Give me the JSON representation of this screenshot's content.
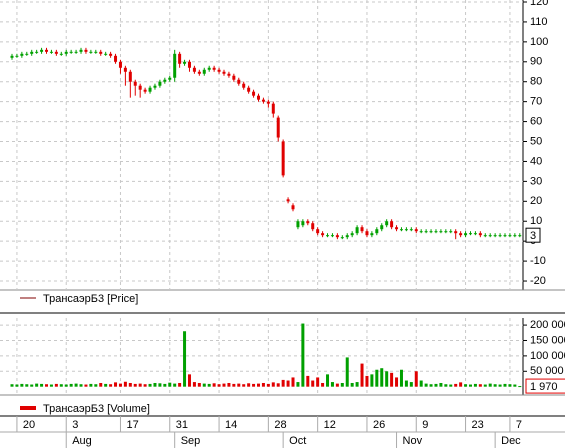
{
  "chart_data": [
    {
      "type": "candlestick",
      "up_color": "#00a000",
      "down_color": "#e00000",
      "grid": true,
      "ylim": [
        -24.5,
        121
      ],
      "yticks": [
        120,
        110,
        100,
        90,
        80,
        70,
        60,
        50,
        40,
        30,
        20,
        10,
        0,
        -10,
        -20
      ],
      "series": [
        {
          "name": "ТрансаэрБ3 [Price]",
          "color": "#800000",
          "open": [
            92,
            93,
            93,
            94,
            94,
            95,
            95,
            96,
            95,
            95,
            94,
            94,
            95,
            95,
            95,
            96,
            95,
            95,
            95,
            94,
            94,
            93,
            90,
            87,
            85,
            80,
            78,
            76,
            75,
            77,
            78,
            80,
            81,
            82,
            94,
            89,
            90,
            87,
            85,
            84,
            86,
            87,
            86,
            85,
            84,
            83,
            81,
            79,
            77,
            75,
            73,
            71,
            70,
            69,
            62,
            50,
            21,
            18,
            7,
            8,
            10,
            9,
            6,
            4,
            3,
            3,
            3,
            2,
            2,
            3,
            4,
            7,
            5,
            3,
            4,
            6,
            8,
            10,
            7,
            6,
            6,
            6,
            6,
            5,
            5,
            5,
            5,
            5,
            5,
            5,
            5,
            4,
            3,
            4,
            4,
            4,
            3,
            3,
            3,
            3,
            3,
            3,
            3,
            3
          ],
          "high": [
            94,
            94,
            95,
            95,
            96,
            96,
            97,
            97,
            96,
            96,
            95,
            96,
            96,
            96,
            97,
            97,
            96,
            96,
            96,
            95,
            95,
            94,
            91,
            88,
            86,
            81,
            79,
            77,
            78,
            79,
            81,
            82,
            83,
            96,
            95,
            91,
            91,
            88,
            86,
            87,
            88,
            88,
            87,
            86,
            85,
            84,
            82,
            80,
            78,
            76,
            74,
            72,
            71,
            70,
            63,
            51,
            22,
            19,
            11,
            11,
            11,
            10,
            7,
            5,
            4,
            4,
            4,
            3,
            4,
            5,
            8,
            8,
            6,
            5,
            7,
            9,
            11,
            11,
            8,
            7,
            7,
            7,
            7,
            6,
            6,
            6,
            6,
            6,
            6,
            6,
            6,
            5,
            5,
            5,
            5,
            5,
            4,
            4,
            4,
            4,
            4,
            4,
            4,
            4
          ],
          "low": [
            91,
            92,
            92,
            93,
            93,
            94,
            94,
            94,
            94,
            93,
            93,
            93,
            94,
            94,
            94,
            94,
            94,
            94,
            93,
            93,
            92,
            89,
            84,
            78,
            72,
            73,
            72,
            74,
            74,
            76,
            77,
            79,
            80,
            80,
            87,
            88,
            85,
            84,
            83,
            83,
            85,
            85,
            84,
            83,
            82,
            80,
            78,
            76,
            74,
            72,
            70,
            69,
            67,
            62,
            50,
            32,
            19,
            15,
            6,
            7,
            8,
            5,
            3,
            2,
            2,
            2,
            1,
            1,
            1,
            2,
            3,
            4,
            2,
            2,
            3,
            5,
            7,
            6,
            5,
            5,
            5,
            5,
            4,
            4,
            4,
            4,
            4,
            4,
            4,
            4,
            1,
            2,
            2,
            3,
            3,
            2,
            2,
            2,
            2,
            2,
            2,
            2,
            2,
            2
          ],
          "close": [
            93,
            93,
            94,
            94,
            95,
            95,
            96,
            95,
            95,
            94,
            94,
            95,
            95,
            95,
            96,
            95,
            95,
            95,
            94,
            94,
            93,
            90,
            87,
            85,
            80,
            78,
            76,
            75,
            77,
            78,
            80,
            81,
            82,
            94,
            89,
            90,
            87,
            85,
            84,
            86,
            87,
            86,
            85,
            84,
            83,
            81,
            79,
            77,
            75,
            73,
            71,
            70,
            69,
            64,
            52,
            33,
            20,
            16,
            10,
            10,
            9,
            6,
            4,
            3,
            3,
            3,
            2,
            2,
            3,
            4,
            7,
            5,
            3,
            4,
            6,
            8,
            10,
            7,
            6,
            6,
            6,
            6,
            5,
            5,
            5,
            5,
            5,
            5,
            5,
            5,
            4,
            3,
            4,
            4,
            4,
            3,
            3,
            3,
            3,
            3,
            3,
            3,
            3,
            3
          ]
        }
      ]
    },
    {
      "type": "bar",
      "grid": true,
      "ylim": [
        -27000,
        223000
      ],
      "yticks": [
        {
          "value": 200000,
          "label": "200 000"
        },
        {
          "value": 150000,
          "label": "150 000"
        },
        {
          "value": 100000,
          "label": "100 000"
        },
        {
          "value": 50000,
          "label": "50 000"
        }
      ],
      "xticks": [
        {
          "value": 1,
          "label": "20"
        },
        {
          "value": 11,
          "label": "3"
        },
        {
          "value": 22,
          "label": "17"
        },
        {
          "value": 32,
          "label": "31"
        },
        {
          "value": 42,
          "label": "14"
        },
        {
          "value": 52,
          "label": "28"
        },
        {
          "value": 62,
          "label": "12"
        },
        {
          "value": 72,
          "label": "26"
        },
        {
          "value": 82,
          "label": "9"
        },
        {
          "value": 92,
          "label": "23"
        },
        {
          "value": 101,
          "label": "7"
        }
      ],
      "months": [
        {
          "value": 11,
          "label": "Aug"
        },
        {
          "value": 33,
          "label": "Sep"
        },
        {
          "value": 55,
          "label": "Oct"
        },
        {
          "value": 78,
          "label": "Nov"
        },
        {
          "value": 98,
          "label": "Dec"
        }
      ],
      "last_value_label": "1 970",
      "series": [
        {
          "name": "ТрансаэрБ3 [Volume]",
          "color": "#e00000",
          "values": [
            8000,
            7000,
            9000,
            8000,
            7000,
            10000,
            9000,
            8000,
            7000,
            9000,
            8000,
            7000,
            9000,
            10000,
            8000,
            7000,
            9000,
            8000,
            12000,
            9000,
            8000,
            14000,
            10000,
            16000,
            12000,
            9000,
            10000,
            8000,
            9000,
            12000,
            11000,
            9000,
            13000,
            10000,
            12000,
            180000,
            40000,
            15000,
            12000,
            10000,
            9000,
            11000,
            8000,
            10000,
            12000,
            9000,
            10000,
            8000,
            11000,
            9000,
            10000,
            12000,
            9000,
            14000,
            11000,
            22000,
            20000,
            30000,
            15000,
            205000,
            35000,
            20000,
            30000,
            12000,
            40000,
            15000,
            10000,
            12000,
            95000,
            12000,
            15000,
            75000,
            35000,
            40000,
            55000,
            60000,
            50000,
            45000,
            30000,
            55000,
            20000,
            15000,
            50000,
            20000,
            10000,
            8000,
            9000,
            12000,
            8000,
            7000,
            9000,
            14000,
            8000,
            7000,
            9000,
            8000,
            7000,
            10000,
            8000,
            7000,
            9000,
            8000,
            7000,
            1970
          ]
        }
      ]
    }
  ]
}
